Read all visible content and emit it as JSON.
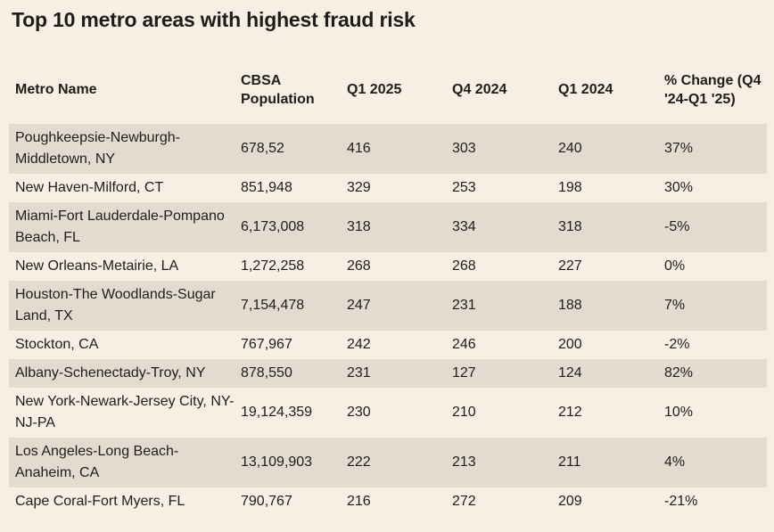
{
  "title": "Top 10 metro areas with highest fraud risk",
  "chart_data": {
    "type": "table",
    "title": "Top 10 metro areas with highest fraud risk",
    "columns": [
      "Metro Name",
      "CBSA Population",
      "Q1 2025",
      "Q4 2024",
      "Q1 2024",
      "% Change (Q4 '24-Q1 '25)"
    ],
    "rows": [
      [
        "Poughkeepsie-Newburgh-Middletown, NY",
        "678,52",
        "416",
        "303",
        "240",
        "37%"
      ],
      [
        "New Haven-Milford, CT",
        "851,948",
        "329",
        "253",
        "198",
        "30%"
      ],
      [
        "Miami-Fort Lauderdale-Pompano Beach, FL",
        "6,173,008",
        "318",
        "334",
        "318",
        "-5%"
      ],
      [
        "New Orleans-Metairie, LA",
        "1,272,258",
        "268",
        "268",
        "227",
        "0%"
      ],
      [
        "Houston-The Woodlands-Sugar Land, TX",
        "7,154,478",
        "247",
        "231",
        "188",
        "7%"
      ],
      [
        "Stockton, CA",
        "767,967",
        "242",
        "246",
        "200",
        "-2%"
      ],
      [
        "Albany-Schenectady-Troy, NY",
        "878,550",
        "231",
        "127",
        "124",
        "82%"
      ],
      [
        "New York-Newark-Jersey City, NY-NJ-PA",
        "19,124,359",
        "230",
        "210",
        "212",
        "10%"
      ],
      [
        "Los Angeles-Long Beach-Anaheim, CA",
        "13,109,903",
        "222",
        "213",
        "211",
        "4%"
      ],
      [
        "Cape Coral-Fort Myers, FL",
        "790,767",
        "216",
        "272",
        "209",
        "-21%"
      ]
    ]
  },
  "colors": {
    "background": "#f7efe3",
    "band": "#e4dbd0",
    "text": "#1d1d1b"
  }
}
